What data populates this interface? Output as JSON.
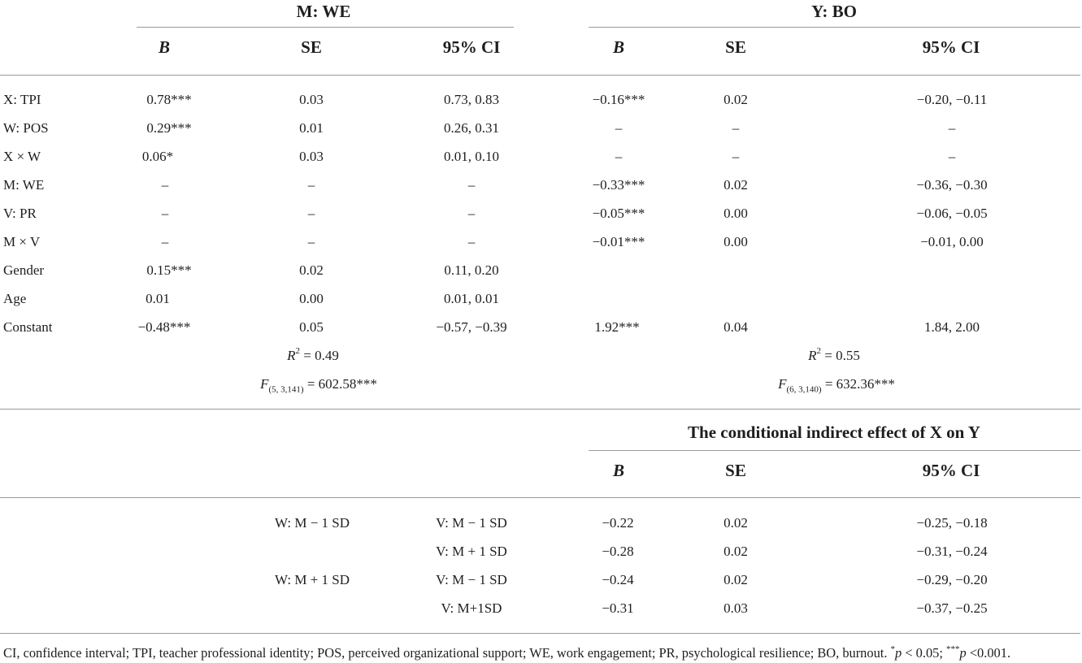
{
  "groups": {
    "m_we": "M: WE",
    "y_bo": "Y: BO",
    "conditional": "The conditional indirect effect of X on Y"
  },
  "col_headers": {
    "b": "B",
    "se": "SE",
    "ci": "95% CI"
  },
  "rows": [
    {
      "label": "X: TPI",
      "m_b": "0.78***",
      "m_se": "0.03",
      "m_ci": "0.73, 0.83",
      "y_b": "−0.16***",
      "y_se": "0.02",
      "y_ci": "−0.20, −0.11"
    },
    {
      "label": "W: POS",
      "m_b": "0.29***",
      "m_se": "0.01",
      "m_ci": "0.26, 0.31",
      "y_b": "–",
      "y_se": "–",
      "y_ci": "–"
    },
    {
      "label": "X × W",
      "m_b": "0.06*",
      "m_se": "0.03",
      "m_ci": "0.01, 0.10",
      "y_b": "–",
      "y_se": "–",
      "y_ci": "–"
    },
    {
      "label": "M: WE",
      "m_b": "–",
      "m_se": "–",
      "m_ci": "–",
      "y_b": "−0.33***",
      "y_se": "0.02",
      "y_ci": "−0.36, −0.30"
    },
    {
      "label": "V: PR",
      "m_b": "–",
      "m_se": "–",
      "m_ci": "–",
      "y_b": "−0.05***",
      "y_se": "0.00",
      "y_ci": "−0.06, −0.05"
    },
    {
      "label": "M × V",
      "m_b": "–",
      "m_se": "–",
      "m_ci": "–",
      "y_b": "−0.01***",
      "y_se": "0.00",
      "y_ci": "−0.01, 0.00"
    },
    {
      "label": "Gender",
      "m_b": "0.15***",
      "m_se": "0.02",
      "m_ci": "0.11, 0.20",
      "y_b": "",
      "y_se": "",
      "y_ci": ""
    },
    {
      "label": "Age",
      "m_b": "0.01",
      "m_se": "0.00",
      "m_ci": "0.01, 0.01",
      "y_b": "",
      "y_se": "",
      "y_ci": ""
    },
    {
      "label": "Constant",
      "m_b": "−0.48***",
      "m_se": "0.05",
      "m_ci": "−0.57, −0.39",
      "y_b": "1.92***",
      "y_se": "0.04",
      "y_ci": "1.84, 2.00"
    }
  ],
  "stats": {
    "m_r2_symbol": "R",
    "m_r2_exp": "2",
    "m_r2_value": " = 0.49",
    "m_f_symbol": "F",
    "m_f_sub": "(5, 3,141)",
    "m_f_value": " = 602.58***",
    "y_r2_symbol": "R",
    "y_r2_exp": "2",
    "y_r2_value": " = 0.55",
    "y_f_symbol": "F",
    "y_f_sub": "(6, 3,140)",
    "y_f_value": " = 632.36***"
  },
  "conditional_rows": [
    {
      "w": "W: M − 1 SD",
      "v": "V: M − 1 SD",
      "b": "−0.22",
      "se": "0.02",
      "ci": "−0.25, −0.18"
    },
    {
      "w": "",
      "v": "V: M + 1 SD",
      "b": "−0.28",
      "se": "0.02",
      "ci": "−0.31, −0.24"
    },
    {
      "w": "W: M + 1 SD",
      "v": "V: M − 1 SD",
      "b": "−0.24",
      "se": "0.02",
      "ci": "−0.29, −0.20"
    },
    {
      "w": "",
      "v": "V: M+1SD",
      "b": "−0.31",
      "se": "0.03",
      "ci": "−0.37, −0.25"
    }
  ],
  "footnote": {
    "text": "CI, confidence interval; TPI, teacher professional identity; POS, perceived organizational support; WE, work engagement; PR, psychological resilience; BO, burnout. ",
    "sig1_mark": "*",
    "sig1_p": "p",
    "sig1_rest": " < 0.05; ",
    "sig2_mark": "***",
    "sig2_p": "p",
    "sig2_rest": " <0.001."
  }
}
